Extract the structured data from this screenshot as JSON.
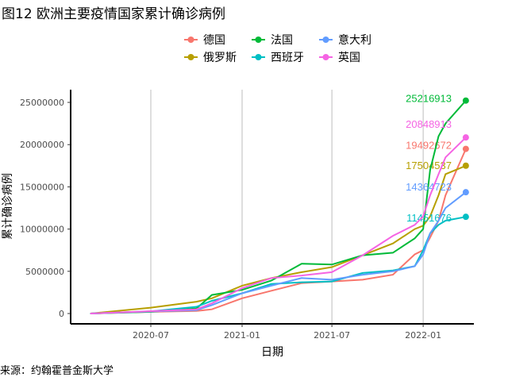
{
  "chart_data": {
    "type": "line",
    "title": "图12 欧洲主要疫情国家累计确诊病例",
    "xlabel": "日期",
    "ylabel": "累计确诊病例",
    "source": "来源：约翰霍普金斯大学",
    "xlim": [
      "2020-03-01",
      "2022-03-28"
    ],
    "ylim": [
      0,
      26500000
    ],
    "x_ticks": [
      "2020-07",
      "2021-01",
      "2021-07",
      "2022-01"
    ],
    "y_ticks": [
      "0",
      "5000000",
      "10000000",
      "15000000",
      "20000000",
      "25000000"
    ],
    "grid": "vertical major lines only",
    "legend_position": "top",
    "x": [
      "2020-03-01",
      "2020-07-01",
      "2020-10-01",
      "2020-11-01",
      "2021-01-01",
      "2021-03-01",
      "2021-05-01",
      "2021-07-01",
      "2021-09-01",
      "2021-11-01",
      "2021-12-15",
      "2022-01-01",
      "2022-01-15",
      "2022-02-01",
      "2022-02-15",
      "2022-03-28"
    ],
    "series": [
      {
        "name": "德国",
        "color": "#F8766D",
        "values": [
          0,
          200000,
          300000,
          500000,
          1800000,
          2700000,
          3600000,
          3800000,
          4000000,
          4600000,
          7000000,
          7500000,
          9000000,
          11000000,
          14000000,
          19492672
        ],
        "end_label": "19492672"
      },
      {
        "name": "俄罗斯",
        "color": "#B79F00",
        "values": [
          0,
          700000,
          1400000,
          1800000,
          3300000,
          4200000,
          4900000,
          5500000,
          6900000,
          8300000,
          10000000,
          10400000,
          11500000,
          14000000,
          16500000,
          17504537
        ],
        "end_label": "17504537"
      },
      {
        "name": "法国",
        "color": "#00BA38",
        "values": [
          0,
          200000,
          600000,
          2200000,
          2800000,
          3900000,
          5900000,
          5800000,
          6900000,
          7200000,
          8900000,
          10000000,
          17000000,
          21000000,
          22500000,
          25216913
        ],
        "end_label": "25216913"
      },
      {
        "name": "西班牙",
        "color": "#00BFC4",
        "values": [
          0,
          250000,
          800000,
          1500000,
          2400000,
          3500000,
          3700000,
          3800000,
          4800000,
          5100000,
          5600000,
          7500000,
          9500000,
          10500000,
          11000000,
          11451676
        ],
        "end_label": "11451676"
      },
      {
        "name": "意大利",
        "color": "#619CFF",
        "values": [
          0,
          240000,
          400000,
          1000000,
          2400000,
          3300000,
          4200000,
          4000000,
          4600000,
          5000000,
          5600000,
          7000000,
          9500000,
          11000000,
          12500000,
          14364723
        ],
        "end_label": "14364723"
      },
      {
        "name": "英国",
        "color": "#F564E3",
        "values": [
          0,
          280000,
          500000,
          1200000,
          3000000,
          4200000,
          4500000,
          4900000,
          6900000,
          9200000,
          10500000,
          11500000,
          14000000,
          16500000,
          18500000,
          20848913
        ],
        "end_label": "20848913"
      }
    ]
  }
}
